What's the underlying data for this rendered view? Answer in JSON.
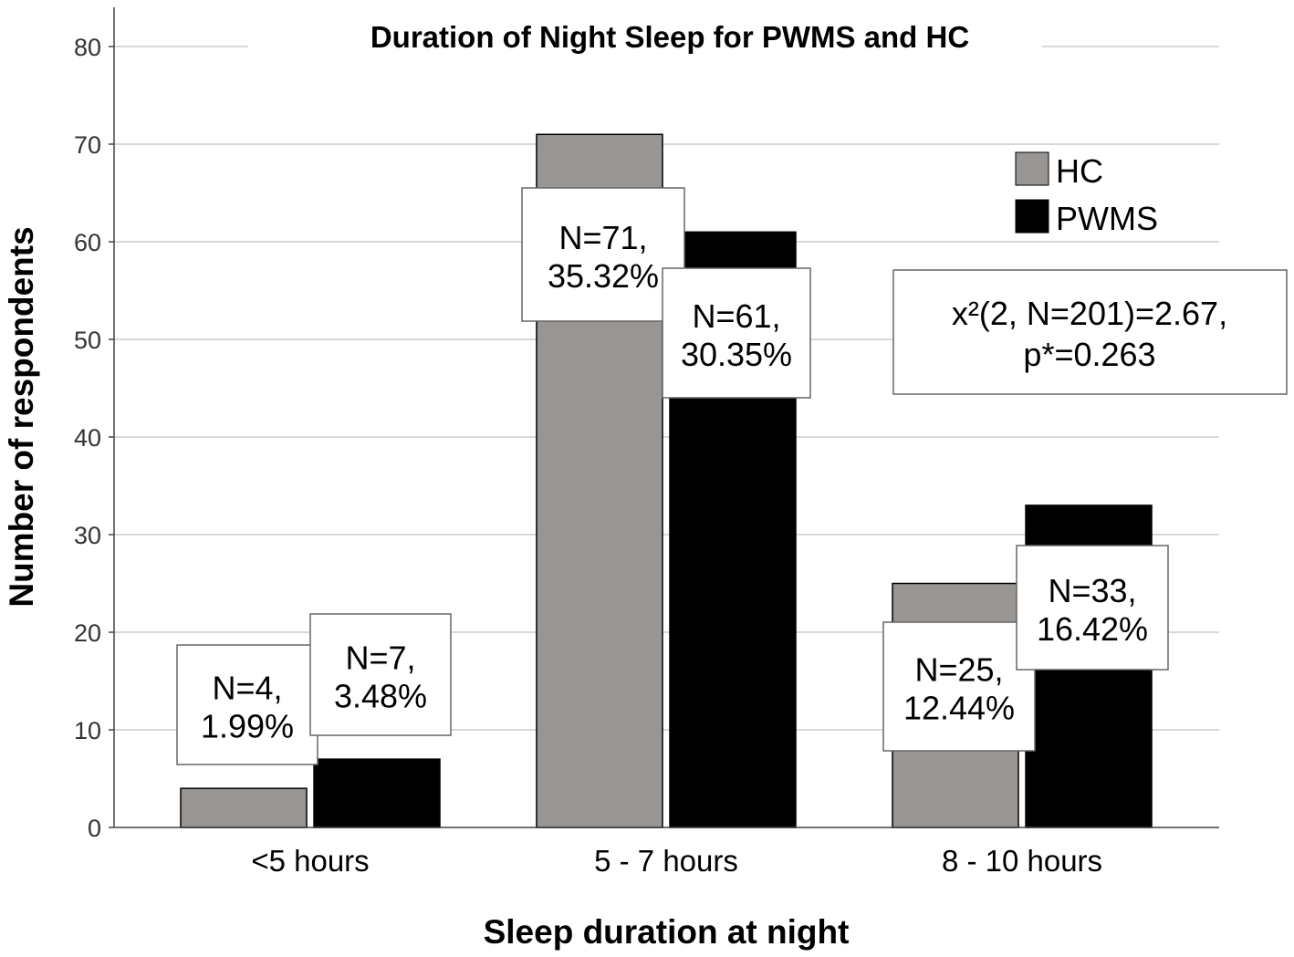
{
  "chart_data": {
    "type": "bar",
    "title": "Duration of Night Sleep for PWMS and HC",
    "xlabel": "Sleep duration at night",
    "ylabel": "Number of respondents",
    "ylim": [
      0,
      80
    ],
    "yticks": [
      0,
      10,
      20,
      30,
      40,
      50,
      60,
      70,
      80
    ],
    "grid": true,
    "legend_position": "top-right",
    "categories": [
      "<5 hours",
      "5 - 7 hours",
      "8 - 10 hours"
    ],
    "series": [
      {
        "name": "HC",
        "color": "#999593",
        "values": [
          4,
          71,
          25
        ],
        "labels": [
          [
            "N=4,",
            "1.99%"
          ],
          [
            "N=71,",
            "35.32%"
          ],
          [
            "N=25,",
            "12.44%"
          ]
        ]
      },
      {
        "name": "PWMS",
        "color": "#000000",
        "values": [
          7,
          61,
          33
        ],
        "labels": [
          [
            "N=7,",
            "3.48%"
          ],
          [
            "N=61,",
            "30.35%"
          ],
          [
            "N=33,",
            "16.42%"
          ]
        ]
      }
    ],
    "annotation": [
      "x²(2, N=201)=2.67,",
      "p*=0.263"
    ]
  }
}
